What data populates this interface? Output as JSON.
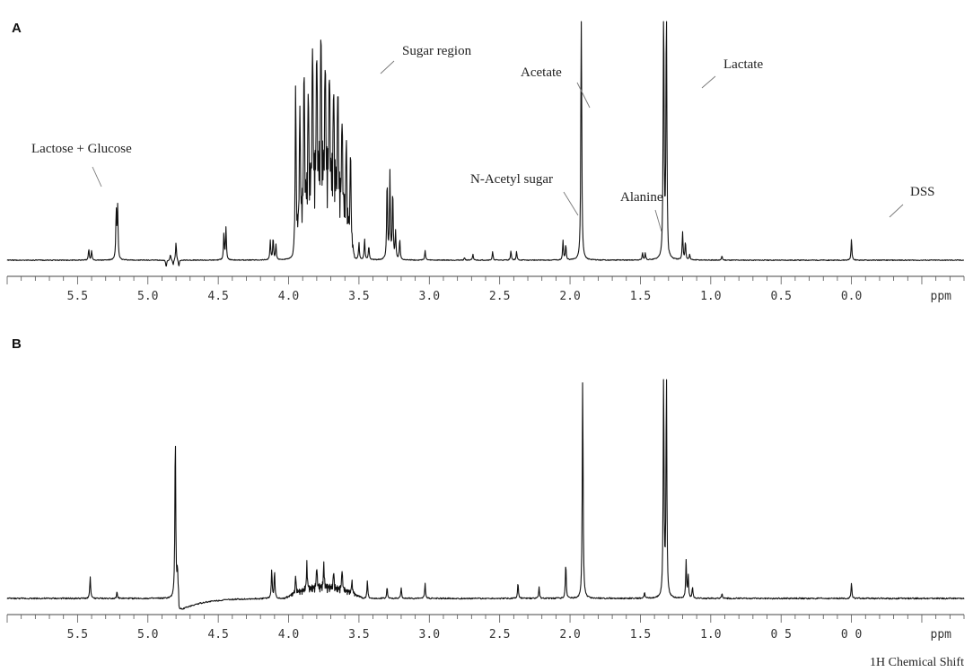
{
  "chart_data": [
    {
      "panel": "A",
      "type": "line",
      "x_unit": "ppm",
      "x_range": [
        6.0,
        -0.8
      ],
      "x_reversed": true,
      "tick_labels": [
        "5.5",
        "5.0",
        "4.5",
        "4.0",
        "3.5",
        "3.0",
        "2.5",
        "2.0",
        "1.5",
        "1.0",
        "0.5",
        "0.0"
      ],
      "annotations": [
        {
          "text": "Lactose + Glucose",
          "ppm": 5.23
        },
        {
          "text": "Sugar region",
          "ppm": 3.45
        },
        {
          "text": "Acetate",
          "ppm": 1.92
        },
        {
          "text": "Lactate",
          "ppm": 1.33
        },
        {
          "text": "N-Acetyl sugar",
          "ppm": 2.05
        },
        {
          "text": "Alanine",
          "ppm": 1.48
        },
        {
          "text": "DSS",
          "ppm": 0.0
        }
      ],
      "peaks": [
        {
          "ppm": 5.42,
          "height": 0.08
        },
        {
          "ppm": 5.4,
          "height": 0.07
        },
        {
          "ppm": 5.225,
          "height": 0.35
        },
        {
          "ppm": 5.215,
          "height": 0.37
        },
        {
          "ppm": 4.87,
          "height": -0.05
        },
        {
          "ppm": 4.84,
          "height": 0.04
        },
        {
          "ppm": 4.82,
          "height": -0.04
        },
        {
          "ppm": 4.8,
          "height": 0.13
        },
        {
          "ppm": 4.78,
          "height": -0.05
        },
        {
          "ppm": 4.46,
          "height": 0.19
        },
        {
          "ppm": 4.445,
          "height": 0.23
        },
        {
          "ppm": 4.13,
          "height": 0.14
        },
        {
          "ppm": 4.11,
          "height": 0.16
        },
        {
          "ppm": 4.09,
          "height": 0.11
        },
        {
          "ppm": 3.95,
          "height": 1.2
        },
        {
          "ppm": 3.92,
          "height": 0.95
        },
        {
          "ppm": 3.89,
          "height": 1.15
        },
        {
          "ppm": 3.86,
          "height": 0.85
        },
        {
          "ppm": 3.83,
          "height": 1.2
        },
        {
          "ppm": 3.8,
          "height": 1.1
        },
        {
          "ppm": 3.77,
          "height": 1.2
        },
        {
          "ppm": 3.74,
          "height": 1.0
        },
        {
          "ppm": 3.71,
          "height": 0.95
        },
        {
          "ppm": 3.68,
          "height": 0.8
        },
        {
          "ppm": 3.65,
          "height": 0.9
        },
        {
          "ppm": 3.62,
          "height": 0.75
        },
        {
          "ppm": 3.59,
          "height": 0.65
        },
        {
          "ppm": 3.56,
          "height": 0.7
        },
        {
          "ppm": 3.5,
          "height": 0.12
        },
        {
          "ppm": 3.46,
          "height": 0.15
        },
        {
          "ppm": 3.43,
          "height": 0.1
        },
        {
          "ppm": 3.3,
          "height": 0.58
        },
        {
          "ppm": 3.28,
          "height": 0.62
        },
        {
          "ppm": 3.26,
          "height": 0.5
        },
        {
          "ppm": 3.24,
          "height": 0.2
        },
        {
          "ppm": 3.21,
          "height": 0.15
        },
        {
          "ppm": 3.03,
          "height": 0.07
        },
        {
          "ppm": 2.75,
          "height": 0.02
        },
        {
          "ppm": 2.69,
          "height": 0.04
        },
        {
          "ppm": 2.55,
          "height": 0.06
        },
        {
          "ppm": 2.42,
          "height": 0.07
        },
        {
          "ppm": 2.38,
          "height": 0.06
        },
        {
          "ppm": 2.05,
          "height": 0.14
        },
        {
          "ppm": 2.03,
          "height": 0.11
        },
        {
          "ppm": 1.92,
          "height": 2.0
        },
        {
          "ppm": 1.485,
          "height": 0.05
        },
        {
          "ppm": 1.465,
          "height": 0.05
        },
        {
          "ppm": 1.335,
          "height": 2.0
        },
        {
          "ppm": 1.315,
          "height": 2.0
        },
        {
          "ppm": 1.3,
          "height": -0.03
        },
        {
          "ppm": 1.2,
          "height": 0.2
        },
        {
          "ppm": 1.18,
          "height": 0.13
        },
        {
          "ppm": 1.15,
          "height": 0.04
        },
        {
          "ppm": 0.92,
          "height": 0.03
        },
        {
          "ppm": 0.0,
          "height": 0.15
        }
      ],
      "broad_bumps": [
        {
          "ppm": 3.75,
          "width": 0.22,
          "height": 0.7
        }
      ]
    },
    {
      "panel": "B",
      "type": "line",
      "x_unit": "ppm",
      "x_range": [
        6.0,
        -0.8
      ],
      "x_reversed": true,
      "xlabel": "1H Chemical Shift",
      "tick_labels": [
        "5.5",
        "5.0",
        "4.5",
        "4.0",
        "3.5",
        "3.0",
        "2.5",
        "2.0",
        "1.5",
        "1.0",
        "0 5",
        "0 0"
      ],
      "peaks": [
        {
          "ppm": 5.41,
          "height": 0.1
        },
        {
          "ppm": 5.22,
          "height": 0.03
        },
        {
          "ppm": 4.805,
          "height": 0.75
        },
        {
          "ppm": 4.79,
          "height": 0.12
        },
        {
          "ppm": 4.12,
          "height": 0.13
        },
        {
          "ppm": 4.1,
          "height": 0.12
        },
        {
          "ppm": 3.95,
          "height": 0.08
        },
        {
          "ppm": 3.87,
          "height": 0.12
        },
        {
          "ppm": 3.8,
          "height": 0.1
        },
        {
          "ppm": 3.75,
          "height": 0.11
        },
        {
          "ppm": 3.68,
          "height": 0.08
        },
        {
          "ppm": 3.62,
          "height": 0.1
        },
        {
          "ppm": 3.55,
          "height": 0.06
        },
        {
          "ppm": 3.44,
          "height": 0.08
        },
        {
          "ppm": 3.3,
          "height": 0.05
        },
        {
          "ppm": 3.2,
          "height": 0.05
        },
        {
          "ppm": 3.03,
          "height": 0.07
        },
        {
          "ppm": 2.37,
          "height": 0.07
        },
        {
          "ppm": 2.22,
          "height": 0.05
        },
        {
          "ppm": 2.03,
          "height": 0.16
        },
        {
          "ppm": 1.91,
          "height": 1.0
        },
        {
          "ppm": 1.47,
          "height": 0.03
        },
        {
          "ppm": 1.335,
          "height": 1.0
        },
        {
          "ppm": 1.315,
          "height": 1.0
        },
        {
          "ppm": 1.175,
          "height": 0.17
        },
        {
          "ppm": 1.16,
          "height": 0.1
        },
        {
          "ppm": 1.13,
          "height": 0.05
        },
        {
          "ppm": 0.92,
          "height": 0.02
        },
        {
          "ppm": 0.0,
          "height": 0.07
        }
      ],
      "broad_bumps": [
        {
          "ppm": 3.75,
          "width": 0.28,
          "height": 0.06
        }
      ],
      "dispersive_dip": {
        "ppm": 4.78,
        "depth": 0.06,
        "recovery": 0.6
      }
    }
  ]
}
